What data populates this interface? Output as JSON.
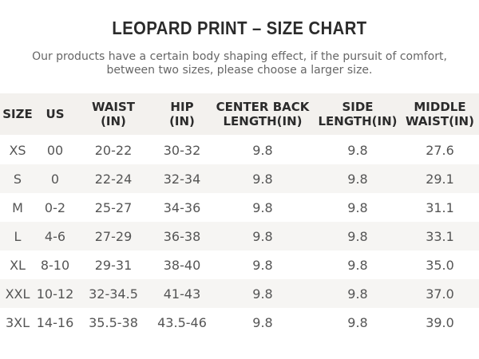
{
  "header": {
    "title": "LEOPARD PRINT – SIZE CHART",
    "subtitle": [
      "Our products have a certain body shaping effect, if the pursuit of comfort,",
      "between two sizes, please choose a larger size."
    ]
  },
  "table": {
    "headers": [
      [
        "SIZE"
      ],
      [
        "US"
      ],
      [
        "WAIST",
        "(IN)"
      ],
      [
        "HIP",
        "(IN)"
      ],
      [
        "CENTER BACK",
        "LENGTH(IN)"
      ],
      [
        "SIDE",
        "LENGTH(IN)"
      ],
      [
        "MIDDLE",
        "WAIST(IN)"
      ]
    ],
    "rows": [
      [
        "XS",
        "00",
        "20-22",
        "30-32",
        "9.8",
        "9.8",
        "27.6"
      ],
      [
        "S",
        "0",
        "22-24",
        "32-34",
        "9.8",
        "9.8",
        "29.1"
      ],
      [
        "M",
        "0-2",
        "25-27",
        "34-36",
        "9.8",
        "9.8",
        "31.1"
      ],
      [
        "L",
        "4-6",
        "27-29",
        "36-38",
        "9.8",
        "9.8",
        "33.1"
      ],
      [
        "XL",
        "8-10",
        "29-31",
        "38-40",
        "9.8",
        "9.8",
        "35.0"
      ],
      [
        "XXL",
        "10-12",
        "32-34.5",
        "41-43",
        "9.8",
        "9.8",
        "37.0"
      ],
      [
        "3XL",
        "14-16",
        "35.5-38",
        "43.5-46",
        "9.8",
        "9.8",
        "39.0"
      ]
    ]
  }
}
